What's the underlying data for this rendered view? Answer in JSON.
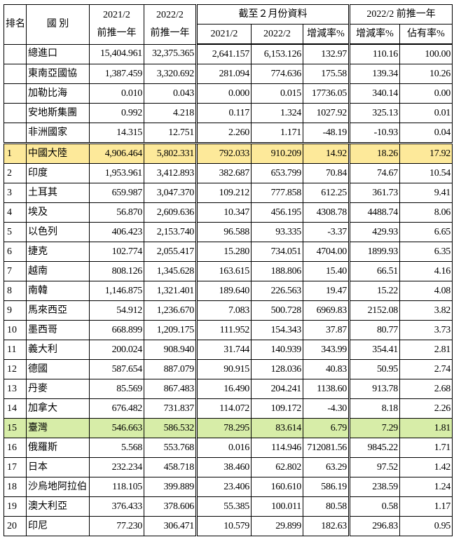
{
  "header": {
    "rank": "排名",
    "country": "國 別",
    "col_2021": "2021/2",
    "col_2021_sub": "前推一年",
    "col_2022": "2022/2",
    "col_2022_sub": "前推一年",
    "group_feb": "截至２月份資料",
    "feb_2021": "2021/2",
    "feb_2022": "2022/2",
    "feb_change": "增減率%",
    "group_prior": "2022/2 前推一年",
    "prior_change": "增減率%",
    "prior_share": "佔有率%"
  },
  "rows": [
    [
      null,
      "總進口",
      "15,404.961",
      "32,375.365",
      "2,641.157",
      "6,153.126",
      "132.97",
      "110.16",
      "100.00"
    ],
    [
      null,
      "東南亞國協",
      "1,387.459",
      "3,320.692",
      "281.094",
      "774.636",
      "175.58",
      "139.34",
      "10.26"
    ],
    [
      null,
      "加勒比海",
      "0.010",
      "0.043",
      "0.000",
      "0.015",
      "17736.05",
      "340.14",
      "0.00"
    ],
    [
      null,
      "安地斯集團",
      "0.992",
      "4.218",
      "0.117",
      "1.324",
      "1027.92",
      "325.13",
      "0.01"
    ],
    [
      null,
      "非洲國家",
      "14.315",
      "12.751",
      "2.260",
      "1.171",
      "-48.19",
      "-10.93",
      "0.04"
    ],
    [
      "1",
      "中國大陸",
      "4,906.464",
      "5,802.331",
      "792.033",
      "910.209",
      "14.92",
      "18.26",
      "17.92"
    ],
    [
      "2",
      "印度",
      "1,953.961",
      "3,412.893",
      "382.687",
      "653.799",
      "70.84",
      "74.67",
      "10.54"
    ],
    [
      "3",
      "土耳其",
      "659.987",
      "3,047.370",
      "109.212",
      "777.858",
      "612.25",
      "361.73",
      "9.41"
    ],
    [
      "4",
      "埃及",
      "56.870",
      "2,609.636",
      "10.347",
      "456.195",
      "4308.78",
      "4488.74",
      "8.06"
    ],
    [
      "5",
      "以色列",
      "406.423",
      "2,153.740",
      "96.588",
      "93.335",
      "-3.37",
      "429.93",
      "6.65"
    ],
    [
      "6",
      "捷克",
      "102.774",
      "2,055.417",
      "15.280",
      "734.051",
      "4704.00",
      "1899.93",
      "6.35"
    ],
    [
      "7",
      "越南",
      "808.126",
      "1,345.628",
      "163.615",
      "188.806",
      "15.40",
      "66.51",
      "4.16"
    ],
    [
      "8",
      "南韓",
      "1,146.875",
      "1,321.401",
      "189.640",
      "226.563",
      "19.47",
      "15.22",
      "4.08"
    ],
    [
      "9",
      "馬來西亞",
      "54.912",
      "1,236.670",
      "7.083",
      "500.728",
      "6969.83",
      "2152.08",
      "3.82"
    ],
    [
      "10",
      "墨西哥",
      "668.899",
      "1,209.175",
      "111.952",
      "154.343",
      "37.87",
      "80.77",
      "3.73"
    ],
    [
      "11",
      "義大利",
      "200.024",
      "908.940",
      "31.744",
      "140.939",
      "343.99",
      "354.41",
      "2.81"
    ],
    [
      "12",
      "德國",
      "587.654",
      "887.079",
      "90.915",
      "128.036",
      "40.83",
      "50.95",
      "2.74"
    ],
    [
      "13",
      "丹麥",
      "85.569",
      "867.483",
      "16.490",
      "204.241",
      "1138.60",
      "913.78",
      "2.68"
    ],
    [
      "14",
      "加拿大",
      "676.482",
      "731.837",
      "114.072",
      "109.172",
      "-4.30",
      "8.18",
      "2.26"
    ],
    [
      "15",
      "臺灣",
      "546.663",
      "586.532",
      "78.295",
      "83.614",
      "6.79",
      "7.29",
      "1.81"
    ],
    [
      "16",
      "俄羅斯",
      "5.568",
      "553.768",
      "0.016",
      "114.946",
      "712081.56",
      "9845.22",
      "1.71"
    ],
    [
      "17",
      "日本",
      "232.234",
      "458.718",
      "38.460",
      "62.802",
      "63.29",
      "97.52",
      "1.42"
    ],
    [
      "18",
      "沙烏地阿拉伯",
      "118.105",
      "399.889",
      "23.406",
      "160.610",
      "586.19",
      "238.59",
      "1.24"
    ],
    [
      "19",
      "澳大利亞",
      "376.433",
      "378.606",
      "55.385",
      "100.011",
      "80.58",
      "0.58",
      "1.17"
    ],
    [
      "20",
      "印尼",
      "77.230",
      "306.471",
      "10.579",
      "29.899",
      "182.63",
      "296.83",
      "0.95"
    ]
  ]
}
